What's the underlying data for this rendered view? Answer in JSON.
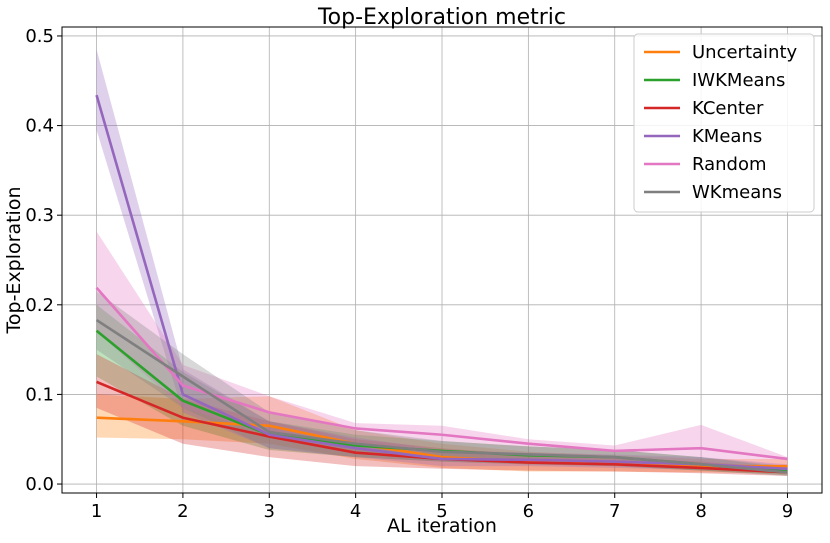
{
  "chart_data": {
    "type": "line",
    "title": "Top-Exploration metric",
    "xlabel": "AL iteration",
    "ylabel": "Top-Exploration",
    "x": [
      1,
      2,
      3,
      4,
      5,
      6,
      7,
      8,
      9
    ],
    "xlim": [
      0.6,
      9.4
    ],
    "ylim": [
      -0.01,
      0.51
    ],
    "yticks": [
      0.0,
      0.1,
      0.2,
      0.3,
      0.4,
      0.5
    ],
    "ytick_labels": [
      "0.0",
      "0.1",
      "0.2",
      "0.3",
      "0.4",
      "0.5"
    ],
    "xtick_labels": [
      "1",
      "2",
      "3",
      "4",
      "5",
      "6",
      "7",
      "8",
      "9"
    ],
    "grid": true,
    "legend_position": "top-right",
    "series": [
      {
        "name": "Uncertainty",
        "color": "#ff7f0e",
        "values": [
          0.074,
          0.07,
          0.065,
          0.045,
          0.03,
          0.025,
          0.022,
          0.02,
          0.02
        ],
        "lower": [
          0.052,
          0.05,
          0.045,
          0.028,
          0.018,
          0.014,
          0.014,
          0.013,
          0.012
        ],
        "upper": [
          0.1,
          0.095,
          0.098,
          0.06,
          0.045,
          0.036,
          0.032,
          0.028,
          0.028
        ]
      },
      {
        "name": "IWKMeans",
        "color": "#2ca02c",
        "values": [
          0.171,
          0.093,
          0.055,
          0.043,
          0.037,
          0.032,
          0.03,
          0.022,
          0.014
        ],
        "lower": [
          0.12,
          0.065,
          0.038,
          0.03,
          0.025,
          0.022,
          0.02,
          0.015,
          0.01
        ],
        "upper": [
          0.2,
          0.125,
          0.07,
          0.055,
          0.048,
          0.042,
          0.038,
          0.03,
          0.02
        ]
      },
      {
        "name": "KCenter",
        "color": "#d62728",
        "values": [
          0.114,
          0.074,
          0.053,
          0.035,
          0.028,
          0.024,
          0.022,
          0.018,
          0.013
        ],
        "lower": [
          0.085,
          0.045,
          0.03,
          0.02,
          0.017,
          0.015,
          0.014,
          0.012,
          0.009
        ],
        "upper": [
          0.145,
          0.095,
          0.07,
          0.05,
          0.04,
          0.033,
          0.03,
          0.025,
          0.018
        ]
      },
      {
        "name": "KMeans",
        "color": "#9467bd",
        "values": [
          0.434,
          0.1,
          0.055,
          0.04,
          0.028,
          0.027,
          0.025,
          0.022,
          0.017
        ],
        "lower": [
          0.395,
          0.08,
          0.04,
          0.03,
          0.02,
          0.02,
          0.018,
          0.016,
          0.012
        ],
        "upper": [
          0.485,
          0.128,
          0.07,
          0.052,
          0.038,
          0.035,
          0.033,
          0.03,
          0.022
        ]
      },
      {
        "name": "Random",
        "color": "#e377c2",
        "values": [
          0.219,
          0.11,
          0.08,
          0.062,
          0.055,
          0.045,
          0.037,
          0.04,
          0.028
        ],
        "lower": [
          0.17,
          0.085,
          0.055,
          0.04,
          0.035,
          0.03,
          0.025,
          0.02,
          0.018
        ],
        "upper": [
          0.282,
          0.133,
          0.098,
          0.068,
          0.065,
          0.05,
          0.043,
          0.066,
          0.03
        ]
      },
      {
        "name": "WKmeans",
        "color": "#7f7f7f",
        "values": [
          0.183,
          0.12,
          0.058,
          0.045,
          0.036,
          0.033,
          0.03,
          0.022,
          0.013
        ],
        "lower": [
          0.15,
          0.085,
          0.04,
          0.03,
          0.025,
          0.022,
          0.02,
          0.015,
          0.009
        ],
        "upper": [
          0.215,
          0.145,
          0.08,
          0.06,
          0.048,
          0.042,
          0.038,
          0.03,
          0.018
        ]
      }
    ]
  }
}
